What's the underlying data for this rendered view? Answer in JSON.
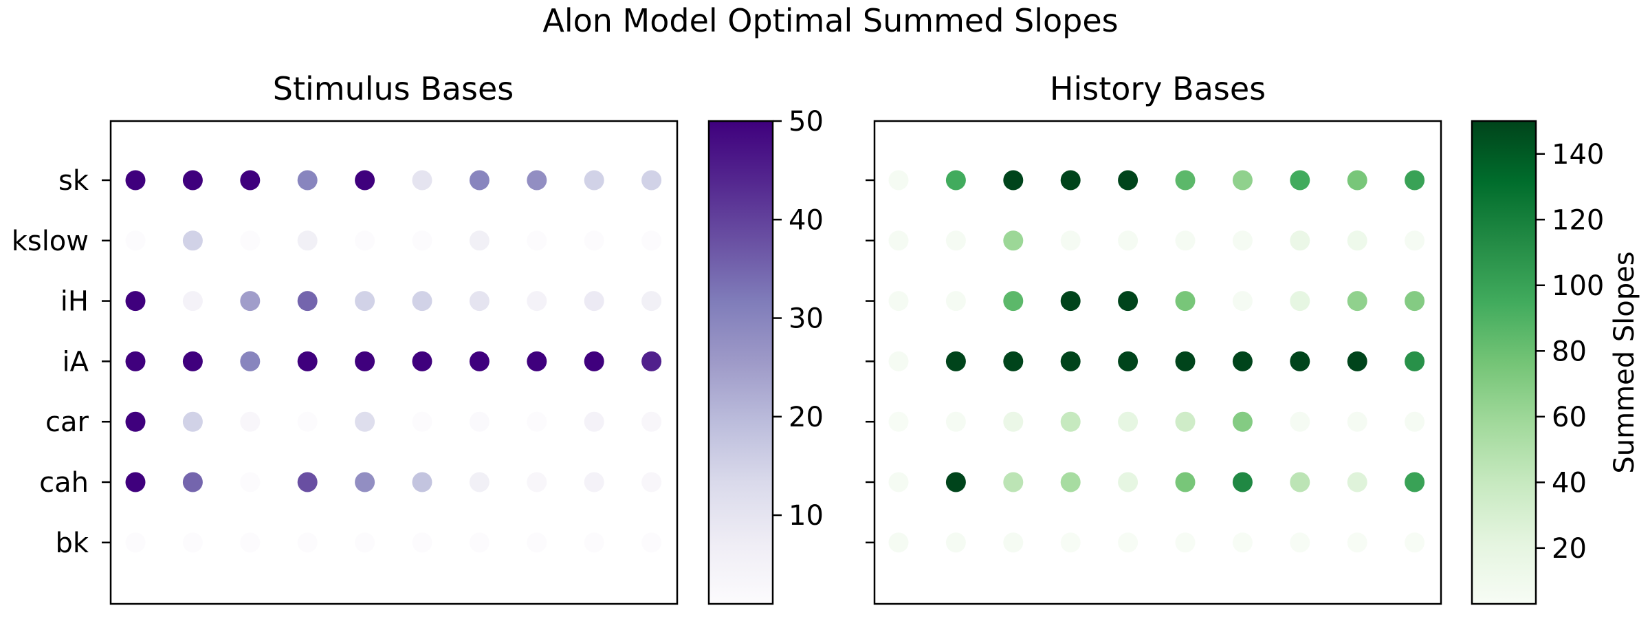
{
  "figure_title": "Alon Model Optimal Summed Slopes",
  "colors": {
    "purples": [
      "#fcfbfd",
      "#efedf5",
      "#dadaeb",
      "#bcbddc",
      "#9e9ac8",
      "#807dba",
      "#6a51a3",
      "#54278f",
      "#3f007d"
    ],
    "greens": [
      "#f7fcf5",
      "#e5f5e0",
      "#c7e9c0",
      "#a1d99b",
      "#74c476",
      "#41ab5d",
      "#238b45",
      "#006d2c",
      "#00441b"
    ]
  },
  "chart_data": [
    {
      "type": "heatmap",
      "title": "Stimulus Bases",
      "ylabels": [
        "sk",
        "kslow",
        "iH",
        "iA",
        "car",
        "cah",
        "bk"
      ],
      "ncols": 10,
      "values": [
        [
          50,
          50,
          50,
          30,
          50,
          10,
          30,
          28,
          15,
          15
        ],
        [
          1,
          15,
          1,
          6,
          1,
          1,
          6,
          1,
          1,
          1
        ],
        [
          50,
          5,
          25,
          35,
          15,
          15,
          10,
          5,
          8,
          6
        ],
        [
          50,
          50,
          30,
          50,
          50,
          50,
          50,
          50,
          50,
          45
        ],
        [
          50,
          15,
          3,
          1,
          12,
          1,
          2,
          1,
          5,
          3
        ],
        [
          50,
          35,
          1,
          38,
          28,
          18,
          6,
          3,
          5,
          3
        ],
        [
          1,
          1,
          1,
          1,
          1,
          1,
          1,
          1,
          1,
          1
        ]
      ],
      "colorbar": {
        "min": 1,
        "max": 50,
        "ticks": [
          10,
          20,
          30,
          40,
          50
        ],
        "label": "",
        "cmap": "purples"
      }
    },
    {
      "type": "heatmap",
      "title": "History Bases",
      "ylabels": [
        "sk",
        "kslow",
        "iH",
        "iA",
        "car",
        "cah",
        "bk"
      ],
      "ncols": 10,
      "values": [
        [
          5,
          95,
          150,
          150,
          150,
          85,
          65,
          95,
          75,
          100
        ],
        [
          5,
          5,
          60,
          5,
          5,
          5,
          5,
          15,
          12,
          5
        ],
        [
          5,
          5,
          85,
          150,
          150,
          75,
          5,
          20,
          65,
          70
        ],
        [
          5,
          150,
          150,
          150,
          150,
          150,
          150,
          150,
          150,
          110
        ],
        [
          3,
          5,
          15,
          40,
          20,
          35,
          70,
          5,
          5,
          5
        ],
        [
          5,
          150,
          45,
          55,
          20,
          75,
          115,
          45,
          25,
          100
        ],
        [
          5,
          5,
          5,
          3,
          3,
          3,
          3,
          3,
          3,
          3
        ]
      ],
      "colorbar": {
        "min": 3,
        "max": 150,
        "ticks": [
          20,
          40,
          60,
          80,
          100,
          120,
          140
        ],
        "label": "Summed Slopes",
        "cmap": "greens"
      }
    }
  ]
}
